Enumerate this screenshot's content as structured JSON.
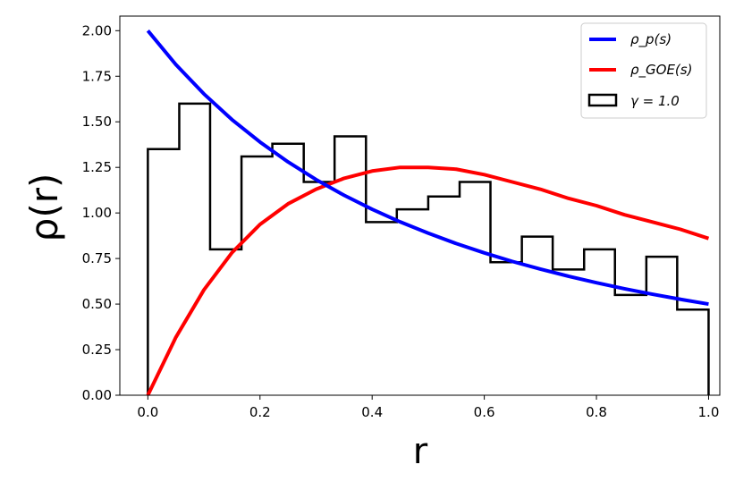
{
  "chart_data": {
    "type": "line",
    "xlabel": "r",
    "ylabel": "ρ(r)",
    "xlim": [
      -0.05,
      1.02
    ],
    "ylim": [
      0.0,
      2.08
    ],
    "x_ticks": [
      0.0,
      0.2,
      0.4,
      0.6,
      0.8,
      1.0
    ],
    "x_tick_labels": [
      "0.0",
      "0.2",
      "0.4",
      "0.6",
      "0.8",
      "1.0"
    ],
    "y_ticks": [
      0.0,
      0.25,
      0.5,
      0.75,
      1.0,
      1.25,
      1.5,
      1.75,
      2.0
    ],
    "y_tick_labels": [
      "0.00",
      "0.25",
      "0.50",
      "0.75",
      "1.00",
      "1.25",
      "1.50",
      "1.75",
      "2.00"
    ],
    "grid": false,
    "legend_position": "top-right",
    "series": [
      {
        "name": "ρ_p(s)",
        "kind": "line",
        "color": "#0000ff",
        "x": [
          0.0,
          0.05,
          0.1,
          0.15,
          0.2,
          0.25,
          0.3,
          0.35,
          0.4,
          0.45,
          0.5,
          0.55,
          0.6,
          0.65,
          0.7,
          0.75,
          0.8,
          0.85,
          0.9,
          0.95,
          1.0
        ],
        "y": [
          2.0,
          1.814,
          1.653,
          1.512,
          1.389,
          1.28,
          1.183,
          1.097,
          1.02,
          0.951,
          0.889,
          0.832,
          0.781,
          0.734,
          0.692,
          0.653,
          0.617,
          0.584,
          0.554,
          0.526,
          0.5
        ]
      },
      {
        "name": "ρ_GOE(s)",
        "kind": "line",
        "color": "#ff0000",
        "x": [
          0.0,
          0.05,
          0.1,
          0.15,
          0.2,
          0.25,
          0.3,
          0.35,
          0.4,
          0.45,
          0.5,
          0.55,
          0.6,
          0.65,
          0.7,
          0.75,
          0.8,
          0.85,
          0.9,
          0.95,
          1.0
        ],
        "y": [
          0.0,
          0.318,
          0.578,
          0.782,
          0.937,
          1.05,
          1.13,
          1.19,
          1.23,
          1.25,
          1.25,
          1.24,
          1.21,
          1.17,
          1.13,
          1.08,
          1.04,
          0.99,
          0.95,
          0.91,
          0.86
        ]
      },
      {
        "name": "γ = 1.0",
        "kind": "step-histogram",
        "color": "#000000",
        "bin_edges": [
          0.0,
          0.056,
          0.111,
          0.167,
          0.222,
          0.278,
          0.333,
          0.389,
          0.444,
          0.5,
          0.556,
          0.611,
          0.667,
          0.722,
          0.778,
          0.833,
          0.889,
          0.944,
          1.0
        ],
        "values": [
          1.35,
          1.6,
          0.8,
          1.31,
          1.38,
          1.17,
          1.42,
          0.95,
          1.02,
          1.09,
          1.17,
          0.73,
          0.87,
          0.69,
          0.8,
          0.55,
          0.76,
          0.47
        ]
      }
    ]
  }
}
